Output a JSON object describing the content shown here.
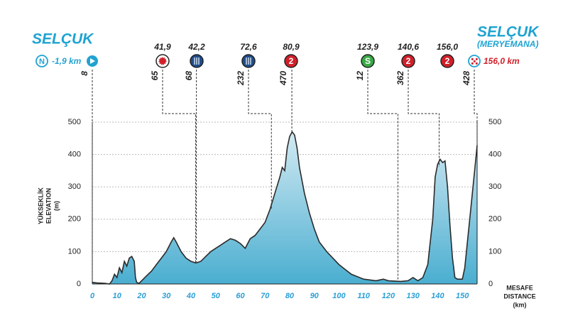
{
  "chart_data": {
    "type": "area",
    "start_label": "SELÇUK",
    "finish_label": "SELÇUK",
    "finish_sublabel": "(MERYEMANA)",
    "start_distance": "-1,9 km",
    "finish_distance": "156,0 km",
    "start_badge": "N",
    "y_label": [
      "YÜKSEKLİK",
      "ELEVATION",
      "(m)"
    ],
    "x_label": [
      "MESAFE",
      "DISTANCE",
      "(km)"
    ],
    "x": [
      0,
      2,
      5,
      7,
      8,
      9,
      10,
      11,
      12,
      13,
      14,
      15,
      16,
      17,
      17.5,
      18,
      19,
      20,
      22,
      24,
      26,
      28,
      30,
      32,
      33,
      34,
      36,
      38,
      40,
      42,
      44,
      46,
      48,
      50,
      52,
      54,
      56,
      58,
      60,
      62,
      64,
      66,
      68,
      70,
      72,
      74,
      76,
      77,
      78,
      79,
      80,
      81,
      82,
      83,
      84,
      86,
      88,
      90,
      92,
      95,
      100,
      105,
      110,
      115,
      118,
      120,
      125,
      128,
      130,
      132,
      134,
      136,
      138,
      139,
      140,
      141,
      142,
      143,
      144,
      145,
      146,
      147,
      148,
      150,
      151,
      153,
      155,
      156
    ],
    "values": [
      5,
      3,
      2,
      0,
      10,
      30,
      20,
      50,
      35,
      70,
      55,
      80,
      85,
      70,
      20,
      5,
      2,
      10,
      25,
      40,
      60,
      80,
      100,
      130,
      143,
      130,
      100,
      80,
      70,
      65,
      70,
      85,
      100,
      110,
      120,
      130,
      140,
      135,
      125,
      110,
      140,
      150,
      170,
      190,
      230,
      280,
      330,
      360,
      350,
      420,
      455,
      470,
      460,
      420,
      360,
      280,
      220,
      170,
      130,
      100,
      60,
      30,
      15,
      10,
      15,
      10,
      8,
      10,
      20,
      10,
      20,
      60,
      200,
      330,
      370,
      385,
      375,
      380,
      300,
      180,
      80,
      20,
      15,
      15,
      50,
      200,
      350,
      428
    ],
    "xlim": [
      0,
      156
    ],
    "ylim": [
      0,
      500
    ],
    "xticks": [
      0,
      10,
      20,
      30,
      40,
      50,
      60,
      70,
      80,
      90,
      100,
      110,
      120,
      130,
      140,
      150
    ],
    "yticks": [
      0,
      100,
      200,
      300,
      400,
      500
    ],
    "y2lim": [
      0,
      500
    ],
    "y2ticks": [
      0,
      100,
      200,
      300,
      400,
      500
    ],
    "fill_top": "#d3eaf3",
    "fill_bottom": "#4aaed0",
    "line_color": "#2b2b2b",
    "accent": "#1fa3d1",
    "finish_color": "#d0202a",
    "waypoints": [
      {
        "km": 0,
        "elevation": 8,
        "marker": "start"
      },
      {
        "km": 41.9,
        "km_label": "41,9",
        "elevation": 65,
        "marker": "sprint"
      },
      {
        "km": 42.2,
        "km_label": "42,2",
        "elevation": 68,
        "marker": "feed"
      },
      {
        "km": 72.6,
        "km_label": "72,6",
        "elevation": 232,
        "marker": "feed"
      },
      {
        "km": 80.9,
        "km_label": "80,9",
        "elevation": 470,
        "marker": "climb",
        "badge": "2"
      },
      {
        "km": 123.9,
        "km_label": "123,9",
        "elevation": 12,
        "marker": "intermediate",
        "badge": "S"
      },
      {
        "km": 140.6,
        "km_label": "140,6",
        "elevation": 362,
        "marker": "climb",
        "badge": "2"
      },
      {
        "km": 156,
        "km_label": "156,0",
        "elevation": 428,
        "marker": "climb",
        "badge": "2"
      }
    ]
  }
}
